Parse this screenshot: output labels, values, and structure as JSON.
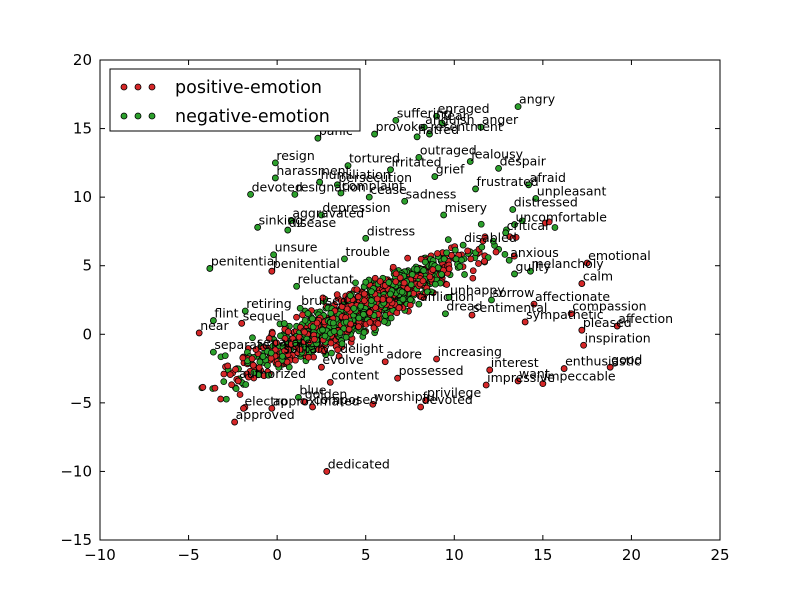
{
  "chart_data": {
    "type": "scatter",
    "title": "",
    "xlabel": "",
    "ylabel": "",
    "xlim": [
      -10,
      25
    ],
    "ylim": [
      -15,
      20
    ],
    "x_ticks": [
      -10,
      -5,
      0,
      5,
      10,
      15,
      20,
      25
    ],
    "y_ticks": [
      -15,
      -10,
      -5,
      0,
      5,
      10,
      15,
      20
    ],
    "x_tick_labels": [
      "−10",
      "−5",
      "0",
      "5",
      "10",
      "15",
      "20",
      "25"
    ],
    "y_tick_labels": [
      "−15",
      "−10",
      "−5",
      "0",
      "5",
      "10",
      "15",
      "20"
    ],
    "grid": false,
    "legend_position": "top-left",
    "series": [
      {
        "name": "positive-emotion",
        "color": "#d62728",
        "points": [
          {
            "x": 2.8,
            "y": -10.0,
            "label": "dedicated"
          },
          {
            "x": -2.4,
            "y": -6.4,
            "label": "approved"
          },
          {
            "x": -1.9,
            "y": -5.4,
            "label": "electro"
          },
          {
            "x": -0.3,
            "y": -5.4,
            "label": "approximated"
          },
          {
            "x": 2.0,
            "y": -5.3,
            "label": "composed"
          },
          {
            "x": 5.4,
            "y": -5.1,
            "label": "worshipful"
          },
          {
            "x": 8.1,
            "y": -5.3,
            "label": "devoted"
          },
          {
            "x": 8.4,
            "y": -4.8,
            "label": "privilege"
          },
          {
            "x": 1.5,
            "y": -4.9,
            "label": "golden"
          },
          {
            "x": -2.2,
            "y": -3.4,
            "label": "authorized"
          },
          {
            "x": 3.0,
            "y": -3.5,
            "label": "content"
          },
          {
            "x": 11.8,
            "y": -3.7,
            "label": "impressive"
          },
          {
            "x": 13.6,
            "y": -3.4,
            "label": "want"
          },
          {
            "x": 15.0,
            "y": -3.6,
            "label": "impeccable"
          },
          {
            "x": 16.2,
            "y": -2.5,
            "label": "enthusiastic"
          },
          {
            "x": 18.8,
            "y": -2.4,
            "label": "good"
          },
          {
            "x": 17.3,
            "y": -0.8,
            "label": "inspiration"
          },
          {
            "x": 19.2,
            "y": 0.6,
            "label": "affection"
          },
          {
            "x": 17.2,
            "y": 0.3,
            "label": "pleased"
          },
          {
            "x": 16.6,
            "y": 1.5,
            "label": "compassion"
          },
          {
            "x": 17.5,
            "y": 5.2,
            "label": "emotional"
          },
          {
            "x": 17.2,
            "y": 3.7,
            "label": "calm"
          },
          {
            "x": -4.4,
            "y": 0.1,
            "label": "near"
          },
          {
            "x": -2.0,
            "y": 0.8,
            "label": "sequel"
          },
          {
            "x": -1.2,
            "y": -1.1,
            "label": "separate"
          },
          {
            "x": -0.3,
            "y": 4.6,
            "label": "penitential"
          },
          {
            "x": 2.5,
            "y": -2.4,
            "label": "evolve"
          },
          {
            "x": 6.8,
            "y": -3.2,
            "label": "possessed"
          },
          {
            "x": 11.0,
            "y": 1.4,
            "label": "sentimental"
          },
          {
            "x": 9.0,
            "y": -1.8,
            "label": "increasing"
          },
          {
            "x": 14.0,
            "y": 0.9,
            "label": "sympathetic"
          },
          {
            "x": 12.0,
            "y": -2.6,
            "label": "interest"
          },
          {
            "x": 3.5,
            "y": -1.6,
            "label": "delight"
          },
          {
            "x": 6.1,
            "y": -2.0,
            "label": "adore"
          },
          {
            "x": 14.5,
            "y": 2.2,
            "label": "affectionate"
          }
        ]
      },
      {
        "name": "negative-emotion",
        "color": "#2ca02c",
        "points": [
          {
            "x": 13.6,
            "y": 16.6,
            "label": "angry"
          },
          {
            "x": 9.0,
            "y": 15.9,
            "label": "enraged"
          },
          {
            "x": 6.7,
            "y": 15.6,
            "label": "suffering"
          },
          {
            "x": 9.3,
            "y": 15.4,
            "label": "fear"
          },
          {
            "x": 11.5,
            "y": 15.1,
            "label": "anger"
          },
          {
            "x": 8.3,
            "y": 15.1,
            "label": "anguish"
          },
          {
            "x": 5.5,
            "y": 14.6,
            "label": "provoke"
          },
          {
            "x": 8.6,
            "y": 14.6,
            "label": "resentment"
          },
          {
            "x": 2.3,
            "y": 14.3,
            "label": "panic"
          },
          {
            "x": 7.9,
            "y": 14.4,
            "label": "hatred"
          },
          {
            "x": 8.0,
            "y": 12.9,
            "label": "outraged"
          },
          {
            "x": 10.9,
            "y": 12.6,
            "label": "jealousy"
          },
          {
            "x": 12.5,
            "y": 12.1,
            "label": "despair"
          },
          {
            "x": 4.0,
            "y": 12.3,
            "label": "tortured"
          },
          {
            "x": -0.1,
            "y": 12.5,
            "label": "resign"
          },
          {
            "x": -0.1,
            "y": 11.4,
            "label": "harassment"
          },
          {
            "x": 2.4,
            "y": 11.1,
            "label": "humiliation"
          },
          {
            "x": 3.4,
            "y": 10.9,
            "label": "persecution"
          },
          {
            "x": 8.9,
            "y": 11.5,
            "label": "grief"
          },
          {
            "x": 14.2,
            "y": 10.9,
            "label": "afraid"
          },
          {
            "x": -1.5,
            "y": 10.2,
            "label": "devoted"
          },
          {
            "x": 1.0,
            "y": 10.2,
            "label": "resignation"
          },
          {
            "x": 3.6,
            "y": 10.3,
            "label": "complaint"
          },
          {
            "x": 5.2,
            "y": 10.0,
            "label": "cease"
          },
          {
            "x": 14.6,
            "y": 9.9,
            "label": "unpleasant"
          },
          {
            "x": 13.3,
            "y": 9.1,
            "label": "distressed"
          },
          {
            "x": 2.5,
            "y": 8.7,
            "label": "depression"
          },
          {
            "x": 0.8,
            "y": 8.3,
            "label": "aggravated"
          },
          {
            "x": 13.4,
            "y": 8.0,
            "label": "uncomfortable"
          },
          {
            "x": -1.1,
            "y": 7.8,
            "label": "sinking"
          },
          {
            "x": 0.6,
            "y": 7.6,
            "label": "disease"
          },
          {
            "x": 12.9,
            "y": 7.4,
            "label": "critical"
          },
          {
            "x": 10.5,
            "y": 6.5,
            "label": "disabled"
          },
          {
            "x": 13.1,
            "y": 5.4,
            "label": "anxious"
          },
          {
            "x": -0.2,
            "y": 5.8,
            "label": "unsure"
          },
          {
            "x": -3.8,
            "y": 4.8,
            "label": "penitential"
          },
          {
            "x": 13.4,
            "y": 4.4,
            "label": "guilty"
          },
          {
            "x": 14.3,
            "y": 4.6,
            "label": "melancholy"
          },
          {
            "x": 1.1,
            "y": 3.5,
            "label": "reluctant"
          },
          {
            "x": 9.7,
            "y": 2.7,
            "label": "unhappy"
          },
          {
            "x": 12.1,
            "y": 2.5,
            "label": "sorrow"
          },
          {
            "x": 8.0,
            "y": 2.2,
            "label": "affliction"
          },
          {
            "x": 1.3,
            "y": 1.9,
            "label": "bruised"
          },
          {
            "x": -1.8,
            "y": 1.7,
            "label": "retiring"
          },
          {
            "x": -3.6,
            "y": 1.0,
            "label": "flint"
          },
          {
            "x": -3.6,
            "y": -1.3,
            "label": "separate"
          },
          {
            "x": 0.3,
            "y": -1.6,
            "label": "solitary"
          },
          {
            "x": 1.2,
            "y": -4.6,
            "label": "blue"
          },
          {
            "x": 9.5,
            "y": 1.5,
            "label": "dread"
          },
          {
            "x": 5.0,
            "y": 7.0,
            "label": "distress"
          },
          {
            "x": 7.2,
            "y": 9.7,
            "label": "sadness"
          },
          {
            "x": 9.4,
            "y": 8.7,
            "label": "misery"
          },
          {
            "x": 3.8,
            "y": 5.5,
            "label": "trouble"
          },
          {
            "x": 11.2,
            "y": 10.6,
            "label": "frustrated"
          },
          {
            "x": 6.4,
            "y": 12.0,
            "label": "irritated"
          }
        ]
      }
    ]
  }
}
